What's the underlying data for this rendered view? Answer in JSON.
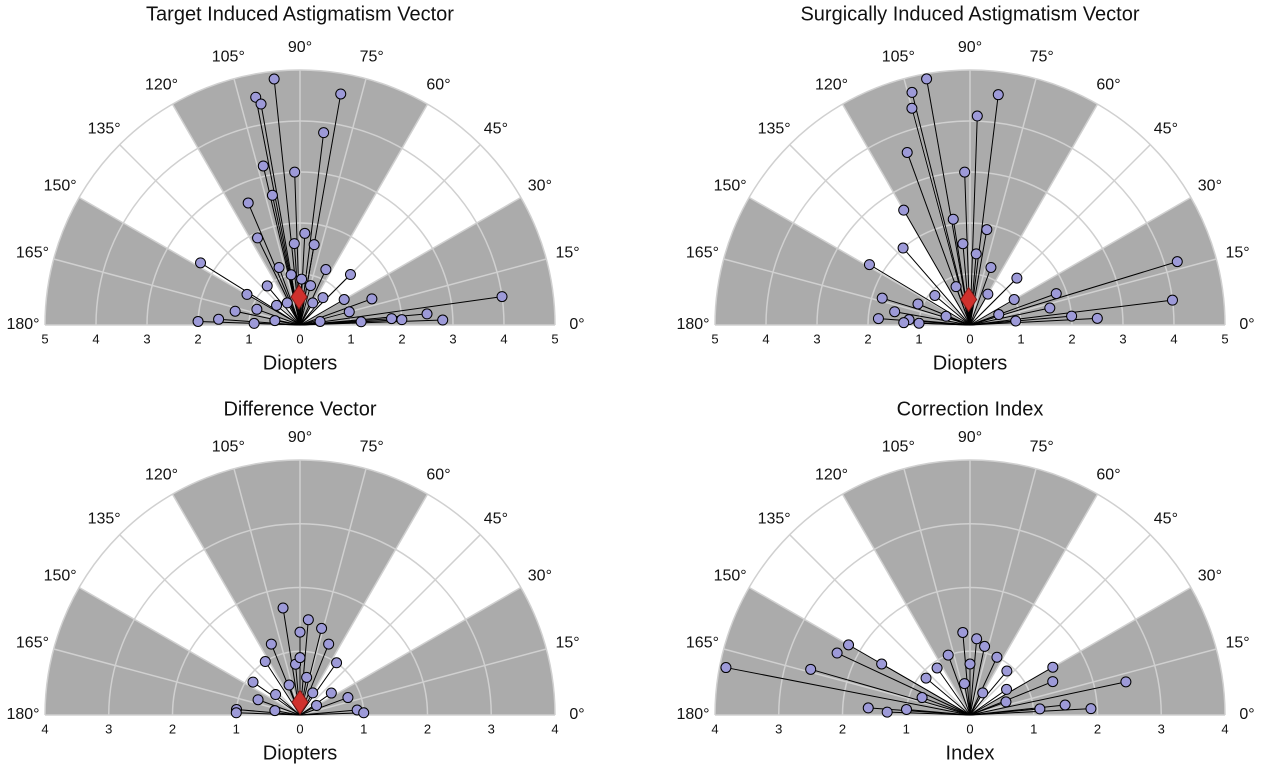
{
  "chart_data": [
    {
      "type": "polar",
      "title": "Target Induced Astigmatism Vector",
      "r_label": "Diopters",
      "rlim": [
        0,
        5
      ],
      "rticks": [
        0,
        1,
        2,
        3,
        4,
        5
      ],
      "thetalim": [
        0,
        180
      ],
      "thetaticks": [
        {
          "value": 0,
          "label": "0°"
        },
        {
          "value": 15,
          "label": "15°"
        },
        {
          "value": 30,
          "label": "30°"
        },
        {
          "value": 45,
          "label": "45°"
        },
        {
          "value": 60,
          "label": "60°"
        },
        {
          "value": 75,
          "label": "75°"
        },
        {
          "value": 90,
          "label": "90°"
        },
        {
          "value": 105,
          "label": "105°"
        },
        {
          "value": 120,
          "label": "120°"
        },
        {
          "value": 135,
          "label": "135°"
        },
        {
          "value": 150,
          "label": "150°"
        },
        {
          "value": 165,
          "label": "165°"
        },
        {
          "value": 180,
          "label": "180°"
        }
      ],
      "shaded": [
        [
          0,
          30
        ],
        [
          60,
          120
        ],
        [
          150,
          180
        ]
      ],
      "shade_color": "#ababab",
      "series": [
        {
          "color": "#9d9ad8",
          "r": [
            4.0,
            2.5,
            2.0,
            2.8,
            4.85,
            4.6,
            4.55,
            4.4,
            3.2,
            3.8,
            3.0,
            2.6,
            2.6,
            2.3,
            1.6,
            1.9,
            1.2,
            1.8,
            1.6,
            1.2,
            1.4,
            1.0,
            1.5,
            1.0,
            1.8,
            2.0,
            1.3,
            1.6,
            0.9,
            1.0,
            1.2,
            1.0,
            0.9,
            0.8,
            0.7,
            0.6,
            0.5,
            0.5,
            0.9,
            1.2,
            0.5,
            0.4
          ],
          "theta": [
            8,
            5,
            3,
            2,
            96,
            80,
            101,
            100,
            103,
            83,
            92,
            102,
            113,
            148,
            94,
            116,
            150,
            87,
            80,
            65,
            45,
            30,
            20,
            15,
            4,
            178,
            168,
            176,
            160,
            130,
            110,
            100,
            88,
            75,
            50,
            140,
            120,
            60,
            178,
            3,
            170,
            10
          ]
        }
      ],
      "mean": {
        "color": "#d0312d",
        "r": 0.55,
        "theta": 92
      }
    },
    {
      "type": "polar",
      "title": "Surgically Induced Astigmatism Vector",
      "r_label": "Diopters",
      "rlim": [
        0,
        5
      ],
      "rticks": [
        0,
        1,
        2,
        3,
        4,
        5
      ],
      "thetalim": [
        0,
        180
      ],
      "thetaticks": [
        {
          "value": 0,
          "label": "0°"
        },
        {
          "value": 15,
          "label": "15°"
        },
        {
          "value": 30,
          "label": "30°"
        },
        {
          "value": 45,
          "label": "45°"
        },
        {
          "value": 60,
          "label": "60°"
        },
        {
          "value": 75,
          "label": "75°"
        },
        {
          "value": 90,
          "label": "90°"
        },
        {
          "value": 105,
          "label": "105°"
        },
        {
          "value": 120,
          "label": "120°"
        },
        {
          "value": 135,
          "label": "135°"
        },
        {
          "value": 150,
          "label": "150°"
        },
        {
          "value": 165,
          "label": "165°"
        },
        {
          "value": 180,
          "label": "180°"
        }
      ],
      "shaded": [
        [
          0,
          30
        ],
        [
          60,
          120
        ],
        [
          150,
          180
        ]
      ],
      "shade_color": "#ababab",
      "series": [
        {
          "color": "#9d9ad8",
          "r": [
            4.25,
            4.0,
            2.5,
            2.0,
            1.8,
            4.9,
            4.55,
            4.7,
            4.4,
            4.1,
            3.6,
            3.0,
            2.6,
            2.3,
            2.0,
            1.8,
            1.5,
            1.8,
            1.2,
            1.0,
            1.6,
            1.4,
            1.2,
            1.3,
            1.0,
            1.6,
            0.9,
            0.8,
            0.7,
            0.6,
            0.5,
            1.1,
            2.1,
            1.9,
            0.9,
            1.3
          ],
          "theta": [
            17,
            7,
            3,
            5,
            20,
            100,
            83,
            104,
            105,
            88,
            110,
            92,
            120,
            149,
            131,
            163,
            170,
            176,
            175,
            178,
            95,
            85,
            70,
            45,
            30,
            12,
            140,
            110,
            60,
            20,
            160,
            158,
            99,
            80,
            5,
            178
          ]
        }
      ],
      "mean": {
        "color": "#d0312d",
        "r": 0.5,
        "theta": 93
      }
    },
    {
      "type": "polar",
      "title": "Difference Vector",
      "r_label": "Diopters",
      "rlim": [
        0,
        4
      ],
      "rticks": [
        0,
        1,
        2,
        3,
        4
      ],
      "thetalim": [
        0,
        180
      ],
      "thetaticks": [
        {
          "value": 0,
          "label": "0°"
        },
        {
          "value": 15,
          "label": "15°"
        },
        {
          "value": 30,
          "label": "30°"
        },
        {
          "value": 45,
          "label": "45°"
        },
        {
          "value": 60,
          "label": "60°"
        },
        {
          "value": 75,
          "label": "75°"
        },
        {
          "value": 90,
          "label": "90°"
        },
        {
          "value": 105,
          "label": "105°"
        },
        {
          "value": 120,
          "label": "120°"
        },
        {
          "value": 135,
          "label": "135°"
        },
        {
          "value": 150,
          "label": "150°"
        },
        {
          "value": 165,
          "label": "165°"
        },
        {
          "value": 180,
          "label": "180°"
        }
      ],
      "shaded": [
        [
          0,
          30
        ],
        [
          60,
          120
        ],
        [
          150,
          180
        ]
      ],
      "shade_color": "#ababab",
      "series": [
        {
          "color": "#9d9ad8",
          "r": [
            1.7,
            1.5,
            1.4,
            1.2,
            1.2,
            1.0,
            1.0,
            0.9,
            0.7,
            1.0,
            1.0,
            0.9,
            1.0,
            0.8,
            0.6,
            0.8,
            0.6,
            0.5,
            0.5,
            0.4,
            0.3,
            0.4,
            1.3,
            0.9
          ],
          "theta": [
            99,
            85,
            76,
            68,
            112,
            55,
            123,
            145,
            160,
            175,
            178,
            5,
            2,
            20,
            35,
            95,
            80,
            110,
            140,
            60,
            30,
            170,
            90,
            90
          ]
        }
      ],
      "mean": {
        "color": "#d0312d",
        "r": 0.2,
        "theta": 90
      }
    },
    {
      "type": "polar",
      "title": "Correction Index",
      "r_label": "Index",
      "rlim": [
        0,
        4
      ],
      "rticks": [
        0,
        1,
        2,
        3,
        4
      ],
      "thetalim": [
        0,
        180
      ],
      "thetaticks": [
        {
          "value": 0,
          "label": "0°"
        },
        {
          "value": 15,
          "label": "15°"
        },
        {
          "value": 30,
          "label": "30°"
        },
        {
          "value": 45,
          "label": "45°"
        },
        {
          "value": 60,
          "label": "60°"
        },
        {
          "value": 75,
          "label": "75°"
        },
        {
          "value": 90,
          "label": "90°"
        },
        {
          "value": 105,
          "label": "105°"
        },
        {
          "value": 120,
          "label": "120°"
        },
        {
          "value": 135,
          "label": "135°"
        },
        {
          "value": 150,
          "label": "150°"
        },
        {
          "value": 165,
          "label": "165°"
        },
        {
          "value": 180,
          "label": "180°"
        }
      ],
      "shaded": [
        [
          0,
          30
        ],
        [
          60,
          120
        ],
        [
          150,
          180
        ]
      ],
      "shade_color": "#ababab",
      "series": [
        {
          "color": "#9d9ad8",
          "r": [
            3.9,
            2.6,
            2.3,
            2.5,
            1.9,
            1.5,
            1.4,
            1.5,
            2.2,
            1.6,
            1.3,
            1.2,
            1.1,
            1.0,
            1.0,
            0.9,
            0.9,
            0.9,
            1.0,
            1.3,
            1.6,
            0.8,
            0.6,
            0.5,
            0.7,
            1.1,
            0.4,
            0.8
          ],
          "theta": [
            169,
            164,
            155,
            12,
            3,
            6,
            22,
            30,
            150,
            150,
            95,
            85,
            78,
            110,
            65,
            50,
            125,
            140,
            175,
            178,
            176,
            160,
            20,
            100,
            35,
            5,
            60,
            90
          ]
        }
      ]
    }
  ]
}
